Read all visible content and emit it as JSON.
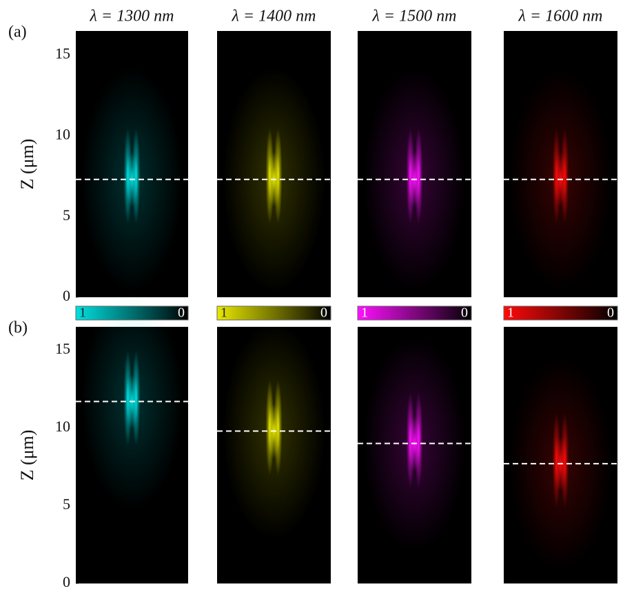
{
  "chart_data": {
    "type": "heatmap",
    "ylabel": "Z (μm)",
    "ylim": [
      0,
      16.5
    ],
    "yticks": [
      0,
      5,
      10,
      15
    ],
    "columns": [
      {
        "title": "λ = 1300 nm",
        "color": "#00e0e0"
      },
      {
        "title": "λ = 1400 nm",
        "color": "#e8e800"
      },
      {
        "title": "λ = 1500 nm",
        "color": "#ff10ff"
      },
      {
        "title": "λ = 1600 nm",
        "color": "#ff0a0a"
      }
    ],
    "rows": [
      {
        "label": "(a)",
        "focus": [
          7.3,
          7.3,
          7.3,
          7.3
        ]
      },
      {
        "label": "(b)",
        "focus": [
          11.7,
          9.8,
          9.0,
          7.7
        ]
      }
    ],
    "colorbar": {
      "max_label": "1",
      "min_label": "0"
    }
  }
}
